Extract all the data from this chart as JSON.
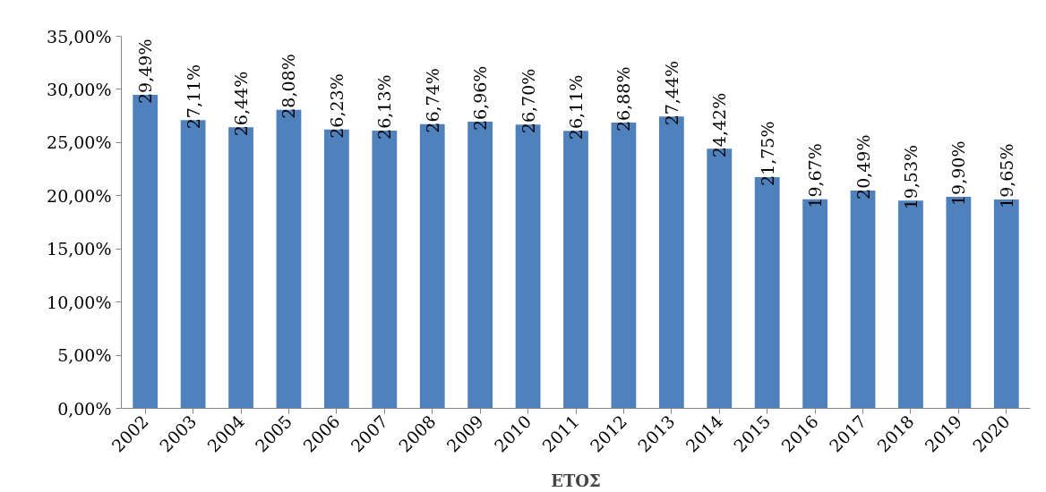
{
  "chart_data": {
    "type": "bar",
    "xlabel": "ΕΤΟΣ",
    "categories": [
      "2002",
      "2003",
      "2004",
      "2005",
      "2006",
      "2007",
      "2008",
      "2009",
      "2010",
      "2011",
      "2012",
      "2013",
      "2014",
      "2015",
      "2016",
      "2017",
      "2018",
      "2019",
      "2020"
    ],
    "values": [
      29.49,
      27.11,
      26.44,
      28.08,
      26.23,
      26.13,
      26.74,
      26.96,
      26.7,
      26.11,
      26.88,
      27.44,
      24.42,
      21.75,
      19.67,
      20.49,
      19.53,
      19.9,
      19.65
    ],
    "value_labels": [
      "29,49%",
      "27,11%",
      "26,44%",
      "28,08%",
      "26,23%",
      "26,13%",
      "26,74%",
      "26,96%",
      "26,70%",
      "26,11%",
      "26,88%",
      "27,44%",
      "24,42%",
      "21,75%",
      "19,67%",
      "20,49%",
      "19,53%",
      "19,90%",
      "19,65%"
    ],
    "color": "#4f81bd",
    "ylim": [
      0,
      35
    ],
    "yticks": [
      {
        "value": 0,
        "label": "0,00%"
      },
      {
        "value": 5,
        "label": "5,00%"
      },
      {
        "value": 10,
        "label": "10,00%"
      },
      {
        "value": 15,
        "label": "15,00%"
      },
      {
        "value": 20,
        "label": "20,00%"
      },
      {
        "value": 25,
        "label": "25,00%"
      },
      {
        "value": 30,
        "label": "30,00%"
      },
      {
        "value": 35,
        "label": "35,00%"
      }
    ],
    "grid": false
  }
}
